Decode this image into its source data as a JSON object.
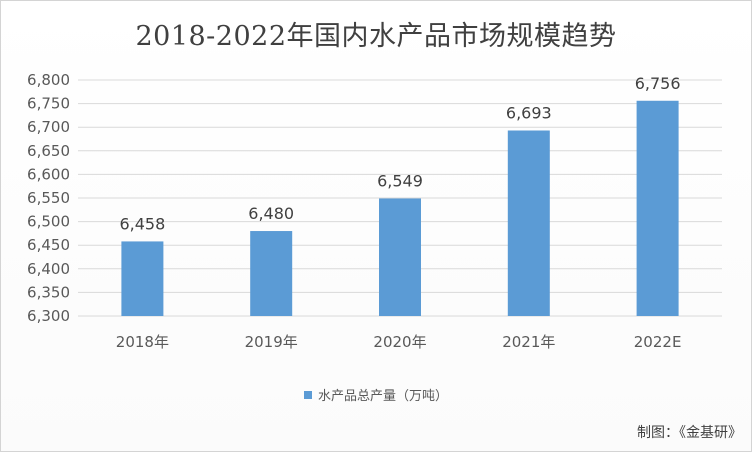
{
  "chart_data": {
    "type": "bar",
    "title": "2018-2022年国内水产品市场规模趋势",
    "categories": [
      "2018年",
      "2019年",
      "2020年",
      "2021年",
      "2022E"
    ],
    "series": [
      {
        "name": "水产品总产量（万吨）",
        "values": [
          6458,
          6480,
          6549,
          6693,
          6756
        ],
        "labels": [
          "6,458",
          "6,480",
          "6,549",
          "6,693",
          "6,756"
        ],
        "color": "#5b9bd5"
      }
    ],
    "ylim": [
      6300,
      6800
    ],
    "yticks": [
      "6,300",
      "6,350",
      "6,400",
      "6,450",
      "6,500",
      "6,550",
      "6,600",
      "6,650",
      "6,700",
      "6,750",
      "6,800"
    ],
    "ytick_values": [
      6300,
      6350,
      6400,
      6450,
      6500,
      6550,
      6600,
      6650,
      6700,
      6750,
      6800
    ],
    "grid": true,
    "legend_position": "bottom",
    "gridline_color": "#d9d9d9"
  },
  "footer": {
    "credit": "制图：《金基研》"
  }
}
